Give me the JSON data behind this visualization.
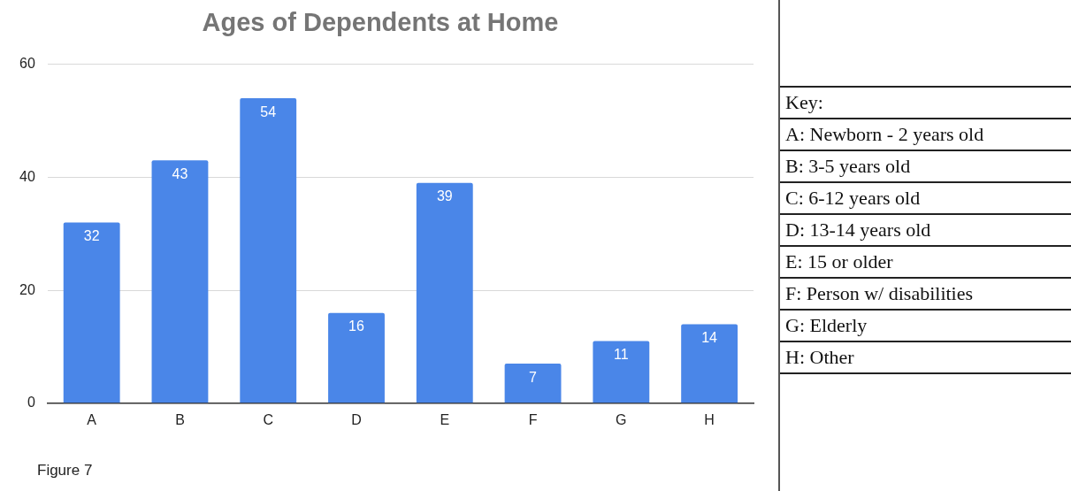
{
  "chart_data": {
    "type": "bar",
    "title": "Ages of Dependents at Home",
    "categories": [
      "A",
      "B",
      "C",
      "D",
      "E",
      "F",
      "G",
      "H"
    ],
    "values": [
      32,
      43,
      54,
      16,
      39,
      7,
      11,
      14
    ],
    "color": "#4a86e8",
    "ylim": [
      0,
      60
    ],
    "yticks": [
      0,
      20,
      40,
      60
    ],
    "grid": "y",
    "legend": false,
    "data_labels": true,
    "annotations": [
      "Figure 7",
      "Key:",
      "A: Newborn - 2 years old",
      "B: 3-5 years old",
      "C: 6-12 years old",
      "D: 13-14 years old",
      "E: 15 or older",
      "F: Person w/ disabilities",
      "G: Elderly",
      "H: Other"
    ]
  }
}
